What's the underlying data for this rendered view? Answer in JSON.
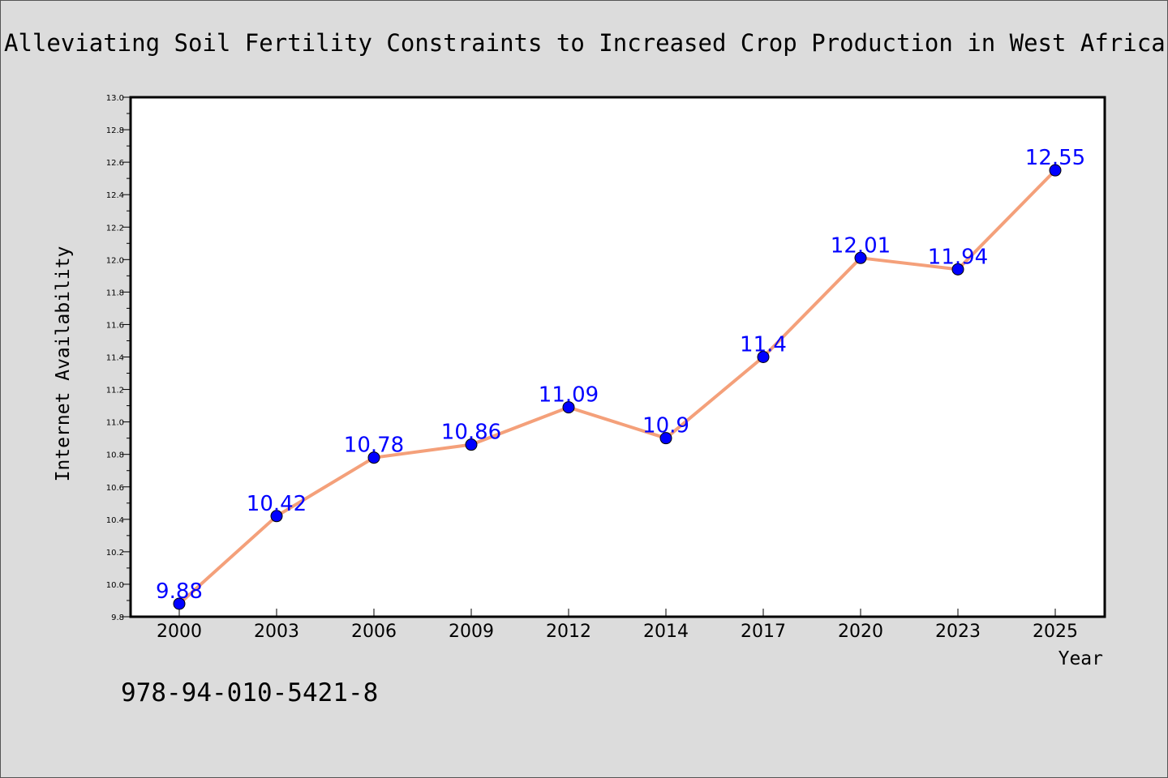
{
  "chart_data": {
    "type": "line",
    "title": "Alleviating Soil Fertility Constraints to Increased Crop Production in West Africa",
    "xlabel": "Year",
    "ylabel": "Internet Availability",
    "categories": [
      "2000",
      "2003",
      "2006",
      "2009",
      "2012",
      "2014",
      "2017",
      "2020",
      "2023",
      "2025"
    ],
    "series": [
      {
        "values": [
          9.88,
          10.42,
          10.78,
          10.86,
          11.09,
          10.9,
          11.4,
          12.01,
          11.94,
          12.55
        ],
        "labels": [
          "9.88",
          "10.42",
          "10.78",
          "10.86",
          "11.09",
          "10.9",
          "11.4",
          "12.01",
          "11.94",
          "12.55"
        ],
        "line_color": "#f4a07a",
        "marker_color": "#0000ff",
        "label_color": "#0000ff"
      }
    ],
    "ylim": [
      9.8,
      13.0
    ],
    "yticks": [
      "9.8",
      "10.0",
      "10.2",
      "10.4",
      "10.6",
      "10.8",
      "11.0",
      "11.2",
      "11.4",
      "11.6",
      "11.8",
      "12.0",
      "12.2",
      "12.4",
      "12.6",
      "12.8",
      "13.0"
    ],
    "grid": false,
    "legend": "none"
  },
  "footer": {
    "isbn": "978-94-010-5421-8"
  },
  "colors": {
    "background": "#dcdcdc",
    "plot_background": "#ffffff"
  }
}
